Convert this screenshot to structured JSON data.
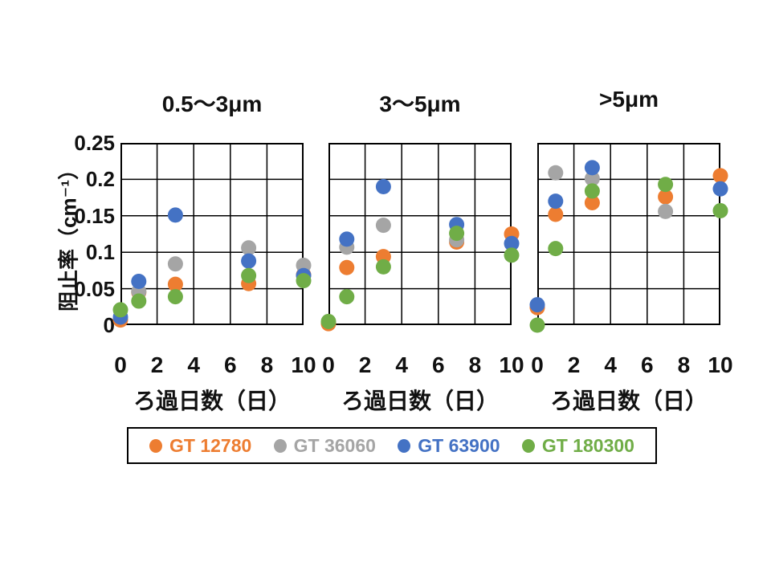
{
  "y_axis": {
    "title": "阻止率（cm⁻¹）",
    "ticks": [
      "0.25",
      "0.2",
      "0.15",
      "0.1",
      "0.05",
      "0"
    ],
    "range": [
      0,
      0.25
    ]
  },
  "x_axis": {
    "title": "ろ過日数（日）",
    "ticks": [
      "0",
      "2",
      "4",
      "6",
      "8",
      "10"
    ],
    "range": [
      0,
      10
    ]
  },
  "legend": {
    "items": [
      {
        "label": "GT 12780",
        "color": "#ED7D31"
      },
      {
        "label": "GT 36060",
        "color": "#A5A5A5"
      },
      {
        "label": "GT 63900",
        "color": "#4472C4"
      },
      {
        "label": "GT 180300",
        "color": "#70AD47"
      }
    ]
  },
  "chart_data": [
    {
      "type": "scatter",
      "title": "0.5〜3μm",
      "xlabel": "ろ過日数（日）",
      "ylabel": "阻止率（cm⁻¹）",
      "xlim": [
        0,
        10
      ],
      "ylim": [
        0,
        0.25
      ],
      "x_ticks": [
        0,
        2,
        4,
        6,
        8,
        10
      ],
      "grid": true,
      "x": [
        0,
        1,
        3,
        7,
        10
      ],
      "series": [
        {
          "name": "GT 12780",
          "color": "#ED7D31",
          "values": [
            0.007,
            0.045,
            0.056,
            0.057,
            0.069
          ]
        },
        {
          "name": "GT 36060",
          "color": "#A5A5A5",
          "values": [
            null,
            0.046,
            0.084,
            0.106,
            0.082
          ]
        },
        {
          "name": "GT 63900",
          "color": "#4472C4",
          "values": [
            0.011,
            0.06,
            0.151,
            0.088,
            0.068
          ]
        },
        {
          "name": "GT 180300",
          "color": "#70AD47",
          "values": [
            0.021,
            0.033,
            0.039,
            0.068,
            0.061
          ]
        }
      ]
    },
    {
      "type": "scatter",
      "title": "3〜5μm",
      "xlabel": "ろ過日数（日）",
      "ylabel": "阻止率（cm⁻¹）",
      "xlim": [
        0,
        10
      ],
      "ylim": [
        0,
        0.25
      ],
      "x_ticks": [
        0,
        2,
        4,
        6,
        8,
        10
      ],
      "grid": true,
      "x": [
        0,
        1,
        3,
        7,
        10
      ],
      "series": [
        {
          "name": "GT 12780",
          "color": "#ED7D31",
          "values": [
            0.002,
            0.079,
            0.094,
            0.114,
            0.125
          ]
        },
        {
          "name": "GT 36060",
          "color": "#A5A5A5",
          "values": [
            null,
            0.107,
            0.137,
            0.117,
            null
          ]
        },
        {
          "name": "GT 63900",
          "color": "#4472C4",
          "values": [
            null,
            0.118,
            0.19,
            0.138,
            0.112
          ]
        },
        {
          "name": "GT 180300",
          "color": "#70AD47",
          "values": [
            0.005,
            0.039,
            0.08,
            0.126,
            0.096
          ]
        }
      ]
    },
    {
      "type": "scatter",
      "title": ">5μm",
      "xlabel": "ろ過日数（日）",
      "ylabel": "阻止率（cm⁻¹）",
      "xlim": [
        0,
        10
      ],
      "ylim": [
        0,
        0.25
      ],
      "x_ticks": [
        0,
        2,
        4,
        6,
        8,
        10
      ],
      "grid": true,
      "x": [
        0,
        1,
        3,
        7,
        10
      ],
      "series": [
        {
          "name": "GT 12780",
          "color": "#ED7D31",
          "values": [
            0.024,
            0.152,
            0.168,
            0.176,
            0.205
          ]
        },
        {
          "name": "GT 36060",
          "color": "#A5A5A5",
          "values": [
            null,
            0.209,
            0.201,
            0.156,
            null
          ]
        },
        {
          "name": "GT 63900",
          "color": "#4472C4",
          "values": [
            0.028,
            0.17,
            0.216,
            null,
            0.187
          ]
        },
        {
          "name": "GT 180300",
          "color": "#70AD47",
          "values": [
            0.0,
            0.105,
            0.184,
            0.193,
            0.157
          ]
        }
      ]
    }
  ]
}
